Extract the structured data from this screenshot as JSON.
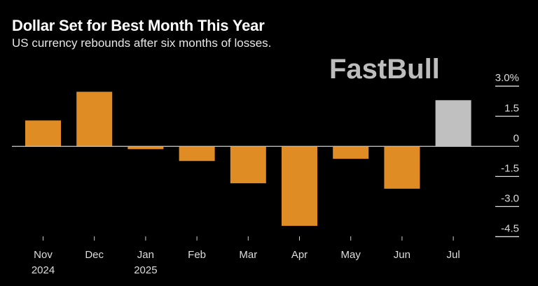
{
  "chart_data": {
    "type": "bar",
    "title": "Dollar Set for Best Month This Year",
    "subtitle": "US currency rebounds after six months of losses.",
    "categories": [
      "Nov\n2024",
      "Dec",
      "Jan\n2025",
      "Feb",
      "Mar",
      "Apr",
      "May",
      "Jun",
      "Jul"
    ],
    "values": [
      1.29,
      2.72,
      -0.14,
      -0.73,
      -1.84,
      -3.96,
      -0.62,
      -2.11,
      2.3
    ],
    "colors": [
      "#e08c25",
      "#e08c25",
      "#e08c25",
      "#e08c25",
      "#e08c25",
      "#e08c25",
      "#e08c25",
      "#e08c25",
      "#c0c0c0"
    ],
    "y_ticks": [
      3.0,
      1.5,
      0,
      -1.5,
      -3.0,
      -4.5
    ],
    "y_tick_labels": [
      "3.0%",
      "1.5",
      "0",
      "-1.5",
      "-3.0",
      "-4.5"
    ],
    "ylim": [
      -4.5,
      3.0
    ],
    "y_axis_position": "right",
    "grid": false,
    "xlabel": "",
    "ylabel": ""
  },
  "watermark": "FastBull"
}
